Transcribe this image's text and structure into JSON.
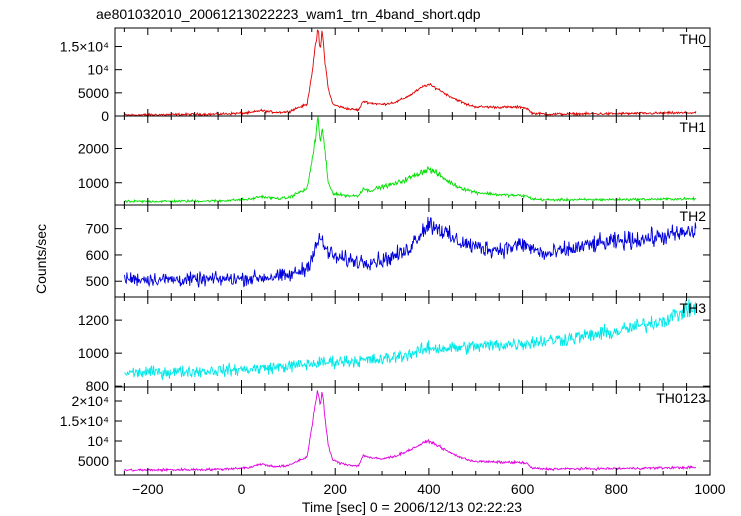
{
  "title": "ae801032010_20061213022223_wam1_trn_4band_short.qdp",
  "xlabel": "Time [sec] 0 = 2006/12/13 02:22:23",
  "ylabel": "Counts/sec",
  "chart_data": [
    {
      "type": "line",
      "name": "TH0",
      "color": "#e00000",
      "xlim": [
        -270,
        1000
      ],
      "ylim": [
        0,
        19000
      ],
      "yticks": [
        0,
        5000,
        10000,
        15000
      ],
      "ytick_labels": [
        "0",
        "5000",
        "10⁴",
        "1.5×10⁴"
      ],
      "noise": 0.04,
      "x": [
        -250,
        -50,
        20,
        40,
        60,
        80,
        100,
        120,
        140,
        150,
        158,
        163,
        168,
        172,
        178,
        185,
        195,
        210,
        230,
        250,
        260,
        275,
        300,
        330,
        360,
        390,
        400,
        420,
        440,
        460,
        480,
        500,
        550,
        600,
        610,
        620,
        650,
        800,
        970
      ],
      "y": [
        200,
        400,
        700,
        1200,
        900,
        800,
        900,
        1800,
        2500,
        9000,
        15000,
        19000,
        14000,
        18500,
        12000,
        6000,
        2500,
        2000,
        1500,
        1300,
        3200,
        2800,
        2500,
        3000,
        4500,
        6500,
        6800,
        5800,
        4500,
        3500,
        2500,
        2000,
        1900,
        1900,
        1600,
        600,
        400,
        500,
        700
      ]
    },
    {
      "type": "line",
      "name": "TH1",
      "color": "#00e000",
      "xlim": [
        -270,
        1000
      ],
      "ylim": [
        350,
        2950
      ],
      "yticks": [
        1000,
        2000
      ],
      "ytick_labels": [
        "1000",
        "2000"
      ],
      "noise": 0.06,
      "x": [
        -250,
        -50,
        20,
        40,
        60,
        80,
        100,
        120,
        140,
        150,
        158,
        163,
        168,
        172,
        178,
        185,
        195,
        210,
        230,
        250,
        260,
        270,
        300,
        330,
        360,
        390,
        400,
        420,
        440,
        460,
        480,
        500,
        550,
        600,
        610,
        620,
        650,
        800,
        970
      ],
      "y": [
        450,
        470,
        520,
        600,
        560,
        540,
        560,
        700,
        820,
        1600,
        2300,
        2900,
        2100,
        2700,
        1900,
        1000,
        700,
        650,
        620,
        620,
        850,
        760,
        880,
        980,
        1150,
        1350,
        1400,
        1250,
        1050,
        900,
        800,
        720,
        650,
        620,
        600,
        530,
        500,
        510,
        530
      ]
    },
    {
      "type": "line",
      "name": "TH2",
      "color": "#0000dd",
      "xlim": [
        -270,
        1000
      ],
      "ylim": [
        440,
        790
      ],
      "yticks": [
        500,
        600,
        700
      ],
      "ytick_labels": [
        "500",
        "600",
        "700"
      ],
      "noise": 0.045,
      "x": [
        -250,
        -100,
        0,
        100,
        140,
        160,
        170,
        180,
        200,
        250,
        300,
        350,
        380,
        400,
        420,
        450,
        500,
        550,
        600,
        650,
        700,
        750,
        800,
        900,
        970
      ],
      "y": [
        510,
        505,
        510,
        520,
        550,
        640,
        660,
        620,
        590,
        575,
        580,
        610,
        680,
        720,
        705,
        660,
        630,
        620,
        640,
        600,
        620,
        640,
        650,
        670,
        690
      ]
    },
    {
      "type": "line",
      "name": "TH3",
      "color": "#00e8e8",
      "xlim": [
        -270,
        1000
      ],
      "ylim": [
        795,
        1340
      ],
      "yticks": [
        800,
        1000,
        1200
      ],
      "ytick_labels": [
        "800",
        "1000",
        "1200"
      ],
      "noise": 0.035,
      "x": [
        -250,
        -100,
        0,
        100,
        200,
        300,
        350,
        380,
        400,
        450,
        500,
        550,
        600,
        700,
        800,
        900,
        970
      ],
      "y": [
        880,
        890,
        900,
        920,
        950,
        960,
        990,
        1010,
        1030,
        1030,
        1040,
        1050,
        1060,
        1090,
        1130,
        1200,
        1280
      ]
    },
    {
      "type": "line",
      "name": "TH0123",
      "color": "#e000e0",
      "xlim": [
        -270,
        1000
      ],
      "ylim": [
        1500,
        23500
      ],
      "yticks": [
        5000,
        10000,
        15000,
        20000
      ],
      "ytick_labels": [
        "5000",
        "10⁴",
        "1.5×10⁴",
        "2×10⁴"
      ],
      "noise": 0.03,
      "x": [
        -250,
        -50,
        20,
        40,
        60,
        80,
        100,
        120,
        140,
        150,
        158,
        163,
        168,
        172,
        178,
        185,
        195,
        210,
        230,
        250,
        260,
        275,
        300,
        330,
        360,
        390,
        400,
        420,
        440,
        460,
        480,
        500,
        550,
        600,
        610,
        620,
        650,
        800,
        970
      ],
      "y": [
        2700,
        2900,
        3400,
        4300,
        3800,
        3600,
        3800,
        5000,
        6000,
        13500,
        19500,
        23000,
        18500,
        22500,
        16000,
        9000,
        5200,
        4500,
        4000,
        3800,
        6500,
        5800,
        5500,
        6300,
        7800,
        9600,
        10000,
        8800,
        7400,
        6300,
        5400,
        4900,
        4700,
        4600,
        4300,
        3200,
        3000,
        3100,
        3400
      ]
    }
  ],
  "xaxis": {
    "ticks": [
      -200,
      0,
      200,
      400,
      600,
      800,
      1000
    ],
    "tick_labels": [
      "−200",
      "0",
      "200",
      "400",
      "600",
      "800",
      "1000"
    ],
    "minor_step": 50
  }
}
